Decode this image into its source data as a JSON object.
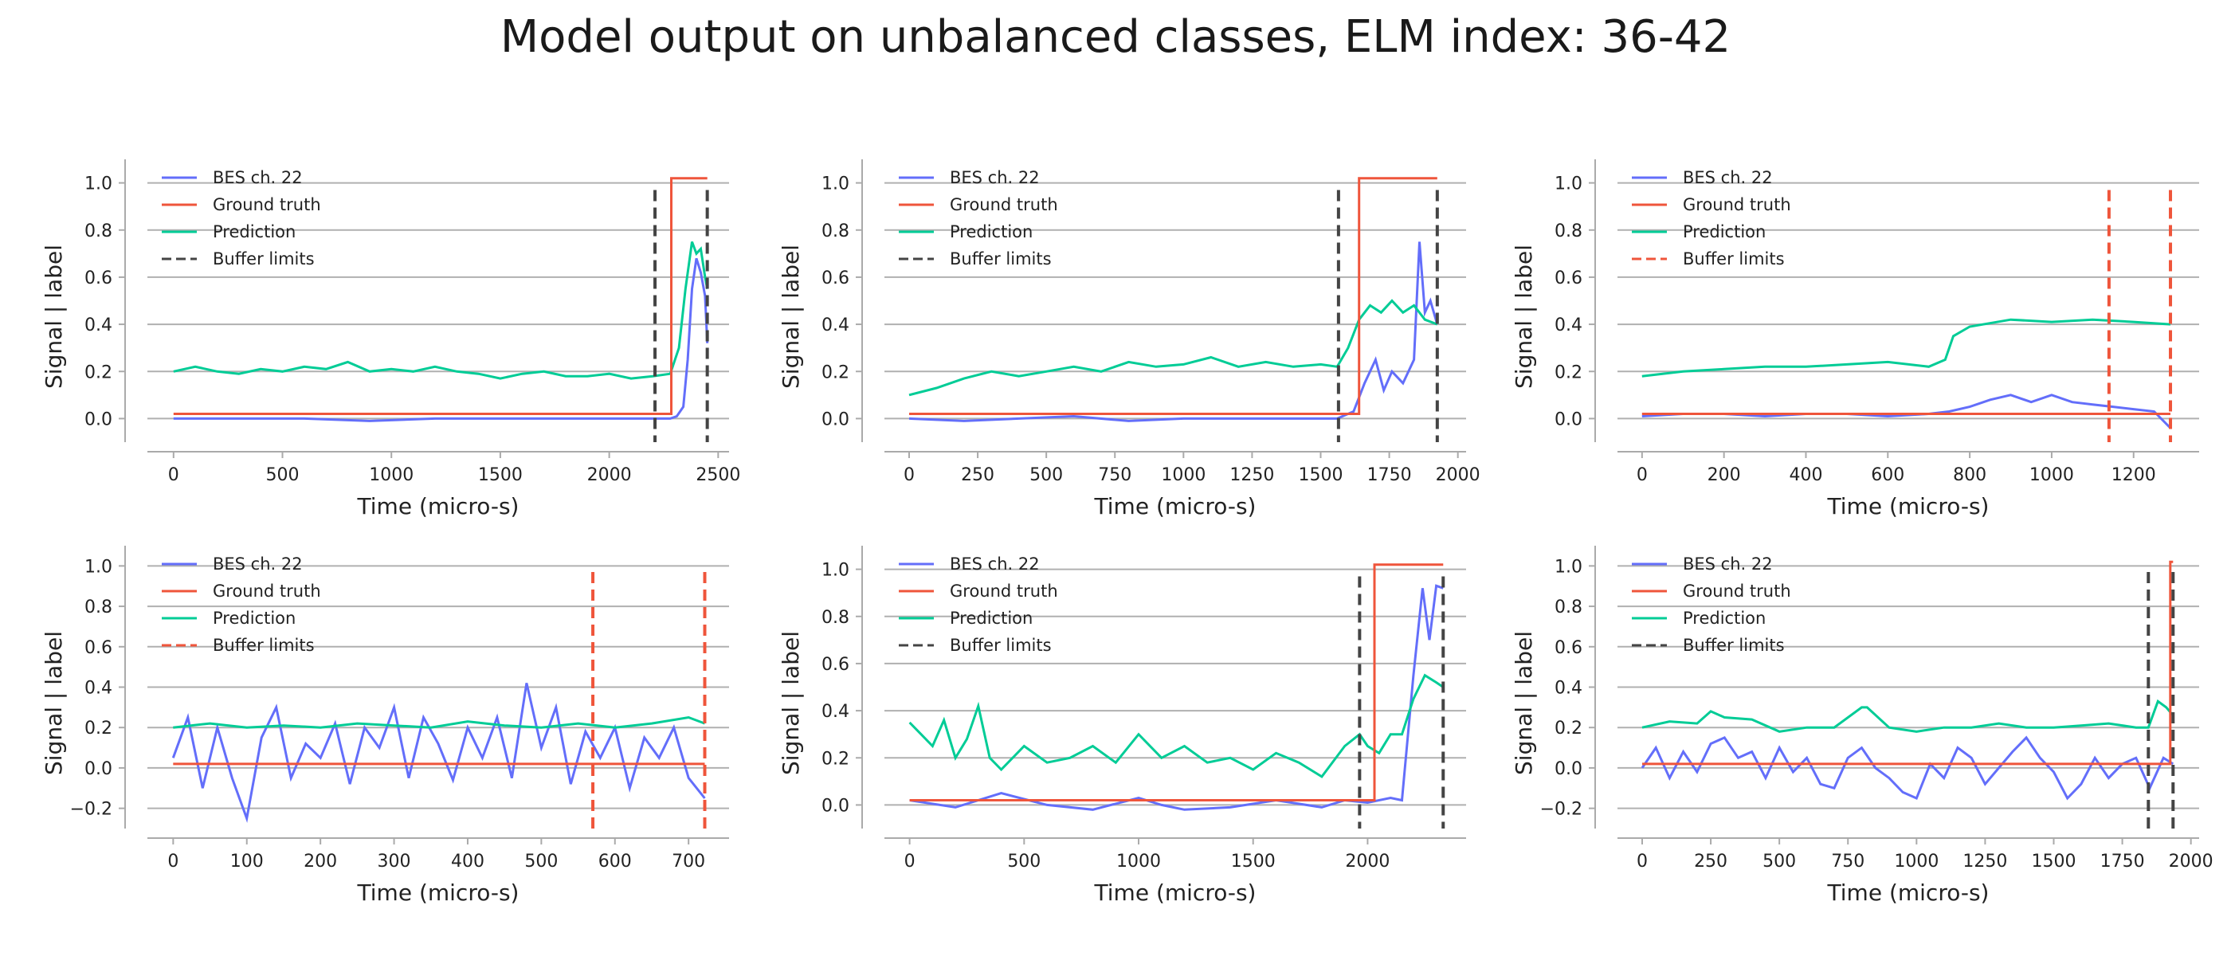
{
  "title": "Model output on unbalanced classes, ELM index: 36-42",
  "colors": {
    "signal": "#636efa",
    "ground_truth": "#ef553b",
    "prediction": "#00cc96",
    "buffer_dark": "#444444",
    "buffer_red": "#ef553b",
    "grid": "#b0b0b0",
    "axis": "#aaaaaa"
  },
  "chart_data": [
    {
      "type": "line",
      "xlabel": "Time (micro-s)",
      "ylabel": "Signal | label",
      "xlim": [
        -120,
        2550
      ],
      "ylim": [
        -0.1,
        1.1
      ],
      "xticks": [
        0,
        500,
        1000,
        1500,
        2000,
        2500
      ],
      "yticks": [
        0.0,
        0.2,
        0.4,
        0.6,
        0.8,
        1.0
      ],
      "ytick_labels": [
        "0.0",
        "0.2",
        "0.4",
        "0.6",
        "0.8",
        "1.0"
      ],
      "xticks_labels": [
        "0",
        "500",
        "1000",
        "1500",
        "2000",
        "2500"
      ],
      "legend": [
        "BES ch. 22",
        "Ground truth",
        "Prediction",
        "Buffer limits"
      ],
      "legend_position": "top-left",
      "buffer_limits": [
        2210,
        2450
      ],
      "buffer_color": "dark",
      "ground_truth": {
        "x": [
          0,
          2285,
          2285,
          2450
        ],
        "y": [
          0.02,
          0.02,
          1.02,
          1.02
        ]
      },
      "signal": {
        "x": [
          0,
          300,
          600,
          900,
          1200,
          1500,
          1800,
          2100,
          2280,
          2310,
          2340,
          2360,
          2380,
          2400,
          2420,
          2440,
          2450
        ],
        "y": [
          0.0,
          0.0,
          0.0,
          -0.01,
          0.0,
          0.0,
          0.0,
          0.0,
          0.0,
          0.01,
          0.05,
          0.25,
          0.55,
          0.68,
          0.62,
          0.52,
          0.32
        ]
      },
      "prediction": {
        "x": [
          0,
          100,
          200,
          300,
          400,
          500,
          600,
          700,
          800,
          900,
          1000,
          1100,
          1200,
          1300,
          1400,
          1500,
          1600,
          1700,
          1800,
          1900,
          2000,
          2100,
          2200,
          2280,
          2320,
          2350,
          2380,
          2400,
          2420,
          2440,
          2450
        ],
        "y": [
          0.2,
          0.22,
          0.2,
          0.19,
          0.21,
          0.2,
          0.22,
          0.21,
          0.24,
          0.2,
          0.21,
          0.2,
          0.22,
          0.2,
          0.19,
          0.17,
          0.19,
          0.2,
          0.18,
          0.18,
          0.19,
          0.17,
          0.18,
          0.19,
          0.3,
          0.55,
          0.75,
          0.7,
          0.72,
          0.6,
          0.55
        ]
      }
    },
    {
      "type": "line",
      "xlabel": "Time (micro-s)",
      "ylabel": "Signal | label",
      "xlim": [
        -90,
        2030
      ],
      "ylim": [
        -0.1,
        1.1
      ],
      "xticks": [
        0,
        250,
        500,
        750,
        1000,
        1250,
        1500,
        1750,
        2000
      ],
      "yticks": [
        0.0,
        0.2,
        0.4,
        0.6,
        0.8,
        1.0
      ],
      "ytick_labels": [
        "0.0",
        "0.2",
        "0.4",
        "0.6",
        "0.8",
        "1.0"
      ],
      "xticks_labels": [
        "0",
        "250",
        "500",
        "750",
        "1000",
        "1250",
        "1500",
        "1750",
        "2000"
      ],
      "legend": [
        "BES ch. 22",
        "Ground truth",
        "Prediction",
        "Buffer limits"
      ],
      "legend_position": "top-left",
      "buffer_limits": [
        1565,
        1925
      ],
      "buffer_color": "dark",
      "ground_truth": {
        "x": [
          0,
          1640,
          1640,
          1925
        ],
        "y": [
          0.02,
          0.02,
          1.02,
          1.02
        ]
      },
      "signal": {
        "x": [
          0,
          200,
          400,
          600,
          800,
          1000,
          1200,
          1400,
          1560,
          1620,
          1660,
          1700,
          1730,
          1760,
          1800,
          1840,
          1860,
          1880,
          1900,
          1925
        ],
        "y": [
          0.0,
          -0.01,
          0.0,
          0.01,
          -0.01,
          0.0,
          0.0,
          0.0,
          0.0,
          0.03,
          0.15,
          0.25,
          0.12,
          0.2,
          0.15,
          0.25,
          0.75,
          0.45,
          0.5,
          0.4
        ]
      },
      "prediction": {
        "x": [
          0,
          100,
          200,
          300,
          400,
          500,
          600,
          700,
          800,
          900,
          1000,
          1100,
          1200,
          1300,
          1400,
          1500,
          1560,
          1600,
          1640,
          1680,
          1720,
          1760,
          1800,
          1840,
          1880,
          1925
        ],
        "y": [
          0.1,
          0.13,
          0.17,
          0.2,
          0.18,
          0.2,
          0.22,
          0.2,
          0.24,
          0.22,
          0.23,
          0.26,
          0.22,
          0.24,
          0.22,
          0.23,
          0.22,
          0.3,
          0.42,
          0.48,
          0.45,
          0.5,
          0.45,
          0.48,
          0.42,
          0.4
        ]
      }
    },
    {
      "type": "line",
      "xlabel": "Time (micro-s)",
      "ylabel": "Signal | label",
      "xlim": [
        -60,
        1360
      ],
      "ylim": [
        -0.1,
        1.1
      ],
      "xticks": [
        0,
        200,
        400,
        600,
        800,
        1000,
        1200
      ],
      "yticks": [
        0.0,
        0.2,
        0.4,
        0.6,
        0.8,
        1.0
      ],
      "ytick_labels": [
        "0.0",
        "0.2",
        "0.4",
        "0.6",
        "0.8",
        "1.0"
      ],
      "xticks_labels": [
        "0",
        "200",
        "400",
        "600",
        "800",
        "1000",
        "1200"
      ],
      "legend": [
        "BES ch. 22",
        "Ground truth",
        "Prediction",
        "Buffer limits"
      ],
      "legend_position": "top-left",
      "buffer_limits": [
        1140,
        1290
      ],
      "buffer_color": "red",
      "ground_truth": {
        "x": [
          0,
          1290
        ],
        "y": [
          0.02,
          0.02
        ]
      },
      "signal": {
        "x": [
          0,
          100,
          200,
          300,
          400,
          500,
          600,
          700,
          750,
          800,
          850,
          900,
          950,
          1000,
          1050,
          1100,
          1150,
          1200,
          1250,
          1290
        ],
        "y": [
          0.01,
          0.02,
          0.02,
          0.01,
          0.02,
          0.02,
          0.01,
          0.02,
          0.03,
          0.05,
          0.08,
          0.1,
          0.07,
          0.1,
          0.07,
          0.06,
          0.05,
          0.04,
          0.03,
          -0.04
        ]
      },
      "prediction": {
        "x": [
          0,
          100,
          200,
          300,
          400,
          500,
          600,
          700,
          740,
          760,
          800,
          900,
          1000,
          1100,
          1200,
          1290
        ],
        "y": [
          0.18,
          0.2,
          0.21,
          0.22,
          0.22,
          0.23,
          0.24,
          0.22,
          0.25,
          0.35,
          0.39,
          0.42,
          0.41,
          0.42,
          0.41,
          0.4
        ]
      }
    },
    {
      "type": "line",
      "xlabel": "Time (micro-s)",
      "ylabel": "Signal | label",
      "xlim": [
        -35,
        755
      ],
      "ylim": [
        -0.3,
        1.1
      ],
      "xticks": [
        0,
        100,
        200,
        300,
        400,
        500,
        600,
        700
      ],
      "yticks": [
        -0.2,
        0.0,
        0.2,
        0.4,
        0.6,
        0.8,
        1.0
      ],
      "ytick_labels": [
        "−0.2",
        "0.0",
        "0.2",
        "0.4",
        "0.6",
        "0.8",
        "1.0"
      ],
      "xticks_labels": [
        "0",
        "100",
        "200",
        "300",
        "400",
        "500",
        "600",
        "700"
      ],
      "legend": [
        "BES ch. 22",
        "Ground truth",
        "Prediction",
        "Buffer limits"
      ],
      "legend_position": "top-left",
      "buffer_limits": [
        570,
        722
      ],
      "buffer_color": "red",
      "ground_truth": {
        "x": [
          0,
          722
        ],
        "y": [
          0.02,
          0.02
        ]
      },
      "signal": {
        "x": [
          0,
          20,
          40,
          60,
          80,
          100,
          120,
          140,
          160,
          180,
          200,
          220,
          240,
          260,
          280,
          300,
          320,
          340,
          360,
          380,
          400,
          420,
          440,
          460,
          480,
          500,
          520,
          540,
          560,
          580,
          600,
          620,
          640,
          660,
          680,
          700,
          722
        ],
        "y": [
          0.05,
          0.25,
          -0.1,
          0.2,
          -0.05,
          -0.25,
          0.15,
          0.3,
          -0.05,
          0.12,
          0.05,
          0.22,
          -0.08,
          0.2,
          0.1,
          0.3,
          -0.05,
          0.25,
          0.12,
          -0.06,
          0.2,
          0.05,
          0.25,
          -0.05,
          0.42,
          0.1,
          0.3,
          -0.08,
          0.18,
          0.05,
          0.2,
          -0.1,
          0.15,
          0.05,
          0.2,
          -0.05,
          -0.15
        ]
      },
      "prediction": {
        "x": [
          0,
          50,
          100,
          150,
          200,
          250,
          300,
          350,
          400,
          450,
          500,
          550,
          600,
          650,
          700,
          722
        ],
        "y": [
          0.2,
          0.22,
          0.2,
          0.21,
          0.2,
          0.22,
          0.21,
          0.2,
          0.23,
          0.21,
          0.2,
          0.22,
          0.2,
          0.22,
          0.25,
          0.22
        ]
      }
    },
    {
      "type": "line",
      "xlabel": "Time (micro-s)",
      "ylabel": "Signal | label",
      "xlim": [
        -110,
        2430
      ],
      "ylim": [
        -0.1,
        1.1
      ],
      "xticks": [
        0,
        500,
        1000,
        1500,
        2000
      ],
      "yticks": [
        0.0,
        0.2,
        0.4,
        0.6,
        0.8,
        1.0
      ],
      "ytick_labels": [
        "0.0",
        "0.2",
        "0.4",
        "0.6",
        "0.8",
        "1.0"
      ],
      "xticks_labels": [
        "0",
        "500",
        "1000",
        "1500",
        "2000"
      ],
      "legend": [
        "BES ch. 22",
        "Ground truth",
        "Prediction",
        "Buffer limits"
      ],
      "legend_position": "top-left",
      "buffer_limits": [
        1965,
        2330
      ],
      "buffer_color": "dark",
      "ground_truth": {
        "x": [
          0,
          2030,
          2030,
          2330
        ],
        "y": [
          0.02,
          0.02,
          1.02,
          1.02
        ]
      },
      "signal": {
        "x": [
          0,
          200,
          400,
          600,
          800,
          1000,
          1100,
          1200,
          1400,
          1600,
          1800,
          1900,
          2000,
          2100,
          2150,
          2200,
          2240,
          2270,
          2300,
          2330
        ],
        "y": [
          0.02,
          -0.01,
          0.05,
          0.0,
          -0.02,
          0.03,
          0.0,
          -0.02,
          -0.01,
          0.02,
          -0.01,
          0.02,
          0.01,
          0.03,
          0.02,
          0.55,
          0.92,
          0.7,
          0.93,
          0.92
        ]
      },
      "prediction": {
        "x": [
          0,
          50,
          100,
          150,
          200,
          250,
          300,
          350,
          400,
          500,
          600,
          700,
          800,
          900,
          1000,
          1100,
          1200,
          1300,
          1400,
          1500,
          1600,
          1700,
          1800,
          1900,
          1965,
          2000,
          2050,
          2100,
          2150,
          2200,
          2250,
          2300,
          2330
        ],
        "y": [
          0.35,
          0.3,
          0.25,
          0.36,
          0.2,
          0.28,
          0.42,
          0.2,
          0.15,
          0.25,
          0.18,
          0.2,
          0.25,
          0.18,
          0.3,
          0.2,
          0.25,
          0.18,
          0.2,
          0.15,
          0.22,
          0.18,
          0.12,
          0.25,
          0.3,
          0.25,
          0.22,
          0.3,
          0.3,
          0.45,
          0.55,
          0.52,
          0.5
        ]
      }
    },
    {
      "type": "line",
      "xlabel": "Time (micro-s)",
      "ylabel": "Signal | label",
      "xlim": [
        -90,
        2030
      ],
      "ylim": [
        -0.3,
        1.1
      ],
      "xticks": [
        0,
        250,
        500,
        750,
        1000,
        1250,
        1500,
        1750,
        2000
      ],
      "yticks": [
        -0.2,
        0.0,
        0.2,
        0.4,
        0.6,
        0.8,
        1.0
      ],
      "ytick_labels": [
        "−0.2",
        "0.0",
        "0.2",
        "0.4",
        "0.6",
        "0.8",
        "1.0"
      ],
      "xticks_labels": [
        "0",
        "250",
        "500",
        "750",
        "1000",
        "1250",
        "1500",
        "1750",
        "2000"
      ],
      "legend": [
        "BES ch. 22",
        "Ground truth",
        "Prediction",
        "Buffer limits"
      ],
      "legend_position": "top-left",
      "buffer_limits": [
        1845,
        1935
      ],
      "buffer_color": "dark",
      "ground_truth": {
        "x": [
          0,
          1925,
          1925,
          1935
        ],
        "y": [
          0.02,
          0.02,
          1.02,
          1.02
        ]
      },
      "signal": {
        "x": [
          0,
          50,
          100,
          150,
          200,
          250,
          300,
          350,
          400,
          450,
          500,
          550,
          600,
          650,
          700,
          750,
          800,
          850,
          900,
          950,
          1000,
          1050,
          1100,
          1150,
          1200,
          1250,
          1300,
          1350,
          1400,
          1450,
          1500,
          1550,
          1600,
          1650,
          1700,
          1750,
          1800,
          1850,
          1900,
          1935
        ],
        "y": [
          0.0,
          0.1,
          -0.05,
          0.08,
          -0.02,
          0.12,
          0.15,
          0.05,
          0.08,
          -0.05,
          0.1,
          -0.02,
          0.05,
          -0.08,
          -0.1,
          0.05,
          0.1,
          0.0,
          -0.05,
          -0.12,
          -0.15,
          0.02,
          -0.05,
          0.1,
          0.05,
          -0.08,
          0.0,
          0.08,
          0.15,
          0.05,
          -0.02,
          -0.15,
          -0.08,
          0.05,
          -0.05,
          0.02,
          0.05,
          -0.1,
          0.05,
          0.02
        ]
      },
      "prediction": {
        "x": [
          0,
          100,
          200,
          250,
          300,
          400,
          500,
          600,
          700,
          800,
          820,
          900,
          1000,
          1100,
          1200,
          1300,
          1400,
          1500,
          1600,
          1700,
          1800,
          1845,
          1880,
          1910,
          1935
        ],
        "y": [
          0.2,
          0.23,
          0.22,
          0.28,
          0.25,
          0.24,
          0.18,
          0.2,
          0.2,
          0.3,
          0.3,
          0.2,
          0.18,
          0.2,
          0.2,
          0.22,
          0.2,
          0.2,
          0.21,
          0.22,
          0.2,
          0.2,
          0.33,
          0.3,
          0.26
        ]
      }
    }
  ]
}
